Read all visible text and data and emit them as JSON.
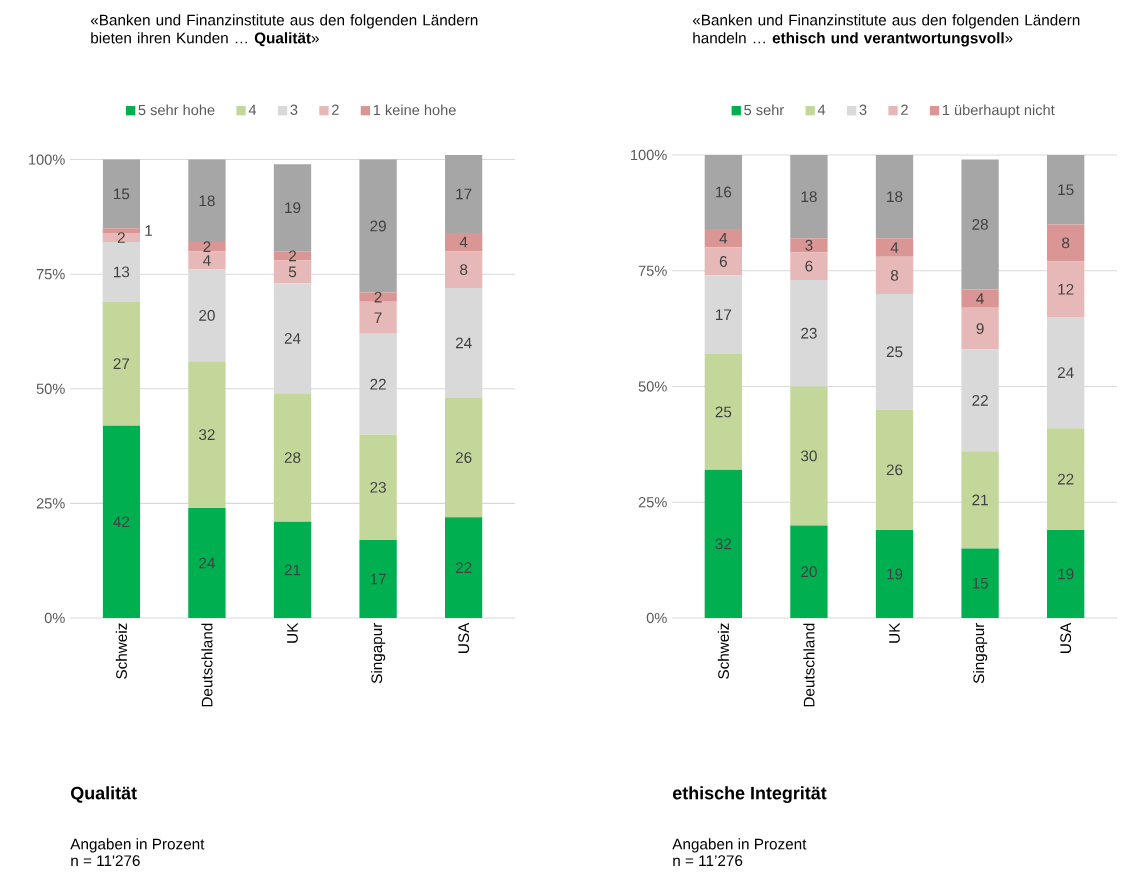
{
  "chart_data": [
    {
      "type": "bar",
      "stacked": true,
      "title": "«Banken und Finanzinstitute aus den folgenden Ländern bieten ihren Kunden … **Qualität**»",
      "subtitle": "Qualität",
      "annotations": [
        "Angaben in Prozent",
        "n = 11'276"
      ],
      "categories": [
        "Schweiz",
        "Deutschland",
        "UK",
        "Singapur",
        "USA"
      ],
      "series": [
        {
          "name": "5 sehr hohe",
          "color": "#00b050",
          "values": [
            42,
            24,
            21,
            17,
            22
          ]
        },
        {
          "name": "4",
          "color": "#c4d79b",
          "values": [
            27,
            32,
            28,
            23,
            26
          ]
        },
        {
          "name": "3",
          "color": "#d9d9d9",
          "values": [
            13,
            20,
            24,
            22,
            24
          ]
        },
        {
          "name": "2",
          "color": "#e6b9b8",
          "values": [
            2,
            4,
            5,
            7,
            8
          ]
        },
        {
          "name": "1 keine hohe",
          "color": "#d99694",
          "values": [
            1,
            2,
            2,
            2,
            4
          ]
        },
        {
          "color": "#a6a6a6",
          "values": [
            15,
            18,
            19,
            29,
            17
          ]
        }
      ],
      "ylim": [
        0,
        101
      ],
      "yticks": [
        {
          "value": 0,
          "label": "0%"
        },
        {
          "value": 25,
          "label": "25%"
        },
        {
          "value": 50,
          "label": "50%"
        },
        {
          "value": 75,
          "label": "75%"
        },
        {
          "value": 100,
          "label": "100%"
        }
      ],
      "grid": "y",
      "legend": "top",
      "data_labels": true
    },
    {
      "type": "bar",
      "stacked": true,
      "title": "«Banken und Finanzinstitute aus den folgenden Ländern handeln … **ethisch und verantwortungsvoll**»",
      "subtitle": "ethische Integrität",
      "annotations": [
        "Angaben in Prozent",
        "n = 11’276"
      ],
      "categories": [
        "Schweiz",
        "Deutschland",
        "UK",
        "Singapur",
        "USA"
      ],
      "series": [
        {
          "name": "5 sehr",
          "color": "#00b050",
          "values": [
            32,
            20,
            19,
            15,
            19
          ]
        },
        {
          "name": "4",
          "color": "#c4d79b",
          "values": [
            25,
            30,
            26,
            21,
            22
          ]
        },
        {
          "name": "3",
          "color": "#d9d9d9",
          "values": [
            17,
            23,
            25,
            22,
            24
          ]
        },
        {
          "name": "2",
          "color": "#e6b9b8",
          "values": [
            6,
            6,
            8,
            9,
            12
          ]
        },
        {
          "name": "1 überhaupt nicht",
          "color": "#d99694",
          "values": [
            4,
            3,
            4,
            4,
            8
          ]
        },
        {
          "color": "#a6a6a6",
          "values": [
            16,
            18,
            18,
            28,
            15
          ]
        }
      ],
      "ylim": [
        0,
        100
      ],
      "yticks": [
        {
          "value": 0,
          "label": "0%"
        },
        {
          "value": 25,
          "label": "25%"
        },
        {
          "value": 50,
          "label": "50%"
        },
        {
          "value": 75,
          "label": "75%"
        },
        {
          "value": 100,
          "label": "100%"
        }
      ],
      "grid": "y",
      "legend": "top",
      "data_labels": true
    }
  ]
}
